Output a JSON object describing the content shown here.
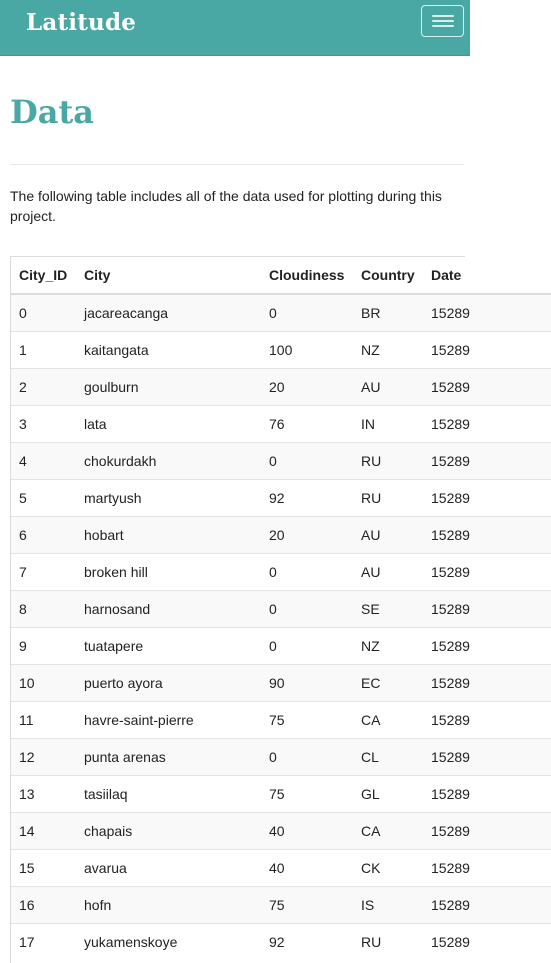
{
  "navbar": {
    "brand": "Latitude",
    "menu_icon": "hamburger-menu-icon"
  },
  "page": {
    "title": "Data",
    "intro": "The following table includes all of the data used for plotting during this project."
  },
  "table": {
    "headers": [
      "City_ID",
      "City",
      "Cloudiness",
      "Country",
      "Date"
    ],
    "rows": [
      [
        "0",
        "jacareacanga",
        "0",
        "BR",
        "15289"
      ],
      [
        "1",
        "kaitangata",
        "100",
        "NZ",
        "15289"
      ],
      [
        "2",
        "goulburn",
        "20",
        "AU",
        "15289"
      ],
      [
        "3",
        "lata",
        "76",
        "IN",
        "15289"
      ],
      [
        "4",
        "chokurdakh",
        "0",
        "RU",
        "15289"
      ],
      [
        "5",
        "martyush",
        "92",
        "RU",
        "15289"
      ],
      [
        "6",
        "hobart",
        "20",
        "AU",
        "15289"
      ],
      [
        "7",
        "broken hill",
        "0",
        "AU",
        "15289"
      ],
      [
        "8",
        "harnosand",
        "0",
        "SE",
        "15289"
      ],
      [
        "9",
        "tuatapere",
        "0",
        "NZ",
        "15289"
      ],
      [
        "10",
        "puerto ayora",
        "90",
        "EC",
        "15289"
      ],
      [
        "11",
        "havre-saint-pierre",
        "75",
        "CA",
        "15289"
      ],
      [
        "12",
        "punta arenas",
        "0",
        "CL",
        "15289"
      ],
      [
        "13",
        "tasiilaq",
        "75",
        "GL",
        "15289"
      ],
      [
        "14",
        "chapais",
        "40",
        "CA",
        "15289"
      ],
      [
        "15",
        "avarua",
        "40",
        "CK",
        "15289"
      ],
      [
        "16",
        "hofn",
        "75",
        "IS",
        "15289"
      ],
      [
        "17",
        "yukamenskoye",
        "92",
        "RU",
        "15289"
      ]
    ]
  },
  "colors": {
    "brand": "#4aa8a4",
    "stripe": "#f9f9f9",
    "border": "#dcdcdc"
  }
}
